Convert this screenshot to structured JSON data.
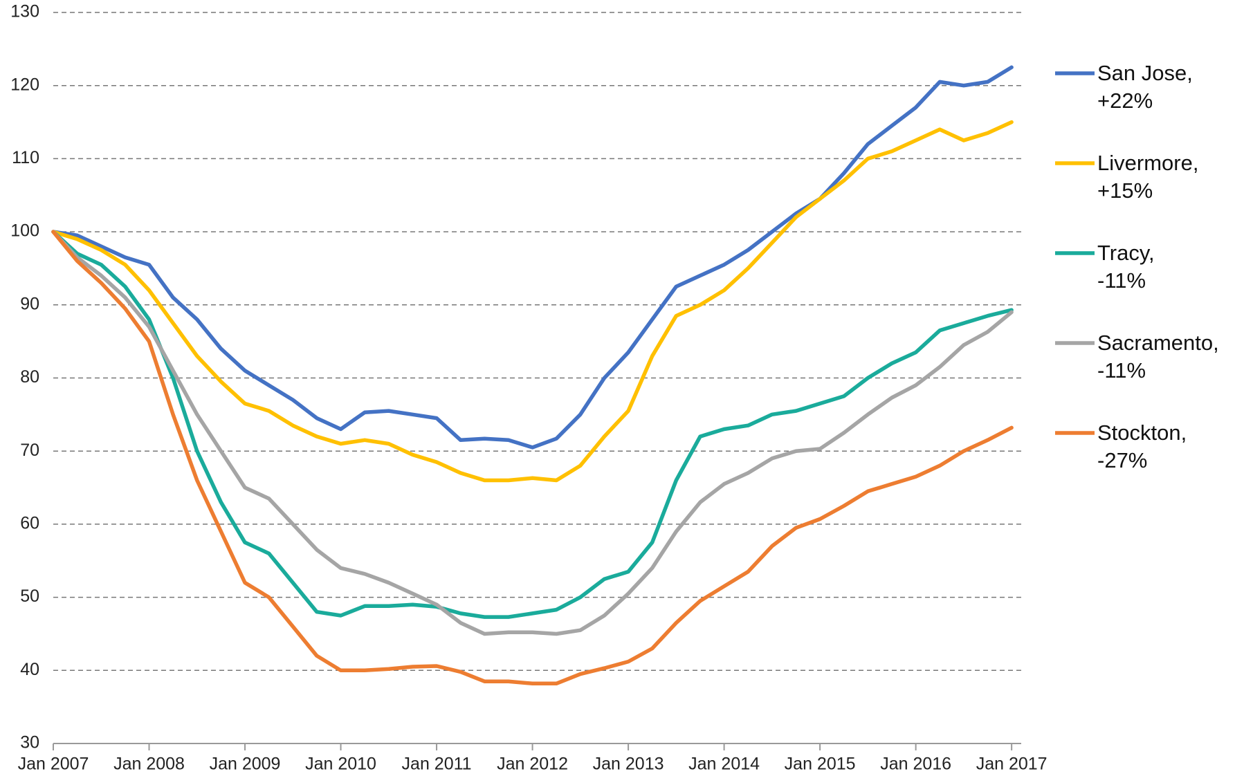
{
  "chart_data": {
    "type": "line",
    "x": [
      2007,
      2007.25,
      2007.5,
      2007.75,
      2008,
      2008.25,
      2008.5,
      2008.75,
      2009,
      2009.25,
      2009.5,
      2009.75,
      2010,
      2010.25,
      2010.5,
      2010.75,
      2011,
      2011.25,
      2011.5,
      2011.75,
      2012,
      2012.25,
      2012.5,
      2012.75,
      2013,
      2013.25,
      2013.5,
      2013.75,
      2014,
      2014.25,
      2014.5,
      2014.75,
      2015,
      2015.25,
      2015.5,
      2015.75,
      2016,
      2016.25,
      2016.5,
      2016.75,
      2017
    ],
    "series": [
      {
        "name": "San Jose,\n+22%",
        "color": "#4472c4",
        "values": [
          100,
          99.5,
          98,
          96.5,
          95.5,
          91,
          88,
          84,
          81,
          79,
          77,
          74.5,
          73,
          75.3,
          75.5,
          75,
          74.5,
          71.5,
          71.7,
          71.5,
          70.5,
          71.7,
          75,
          80,
          83.5,
          88,
          92.5,
          94,
          95.5,
          97.5,
          100,
          102.5,
          104.5,
          108,
          112,
          114.5,
          117,
          120.5,
          120,
          120.5,
          122.5
        ]
      },
      {
        "name": "Livermore,\n+15%",
        "color": "#ffc000",
        "values": [
          100,
          99,
          97.5,
          95.5,
          92,
          87.5,
          83,
          79.5,
          76.5,
          75.5,
          73.5,
          72,
          71,
          71.5,
          71,
          69.5,
          68.5,
          67,
          66,
          66,
          66.3,
          66,
          68,
          72,
          75.5,
          83,
          88.5,
          90,
          92,
          95,
          98.5,
          102,
          104.5,
          107,
          110,
          111,
          112.5,
          114,
          112.5,
          113.5,
          115
        ]
      },
      {
        "name": "Tracy,\n-11%",
        "color": "#1aab9b",
        "values": [
          100,
          97,
          95.5,
          92.5,
          88,
          80,
          70,
          63,
          57.5,
          56,
          52,
          48,
          47.5,
          48.8,
          48.8,
          49,
          48.7,
          47.8,
          47.3,
          47.3,
          47.8,
          48.3,
          50,
          52.5,
          53.5,
          57.5,
          66,
          72,
          73,
          73.5,
          75,
          75.5,
          76.5,
          77.5,
          80,
          82,
          83.5,
          86.5,
          87.5,
          88.5,
          89.3
        ]
      },
      {
        "name": "Sacramento,\n-11%",
        "color": "#a5a5a5",
        "values": [
          100,
          96.5,
          94,
          91,
          87,
          81,
          75,
          70,
          65,
          63.5,
          60,
          56.5,
          54,
          53.2,
          52,
          50.5,
          49,
          46.5,
          45,
          45.2,
          45.2,
          45,
          45.5,
          47.5,
          50.5,
          54,
          59,
          63,
          65.5,
          67,
          69,
          70,
          70.3,
          72.5,
          75,
          77.3,
          79,
          81.5,
          84.5,
          86.3,
          89
        ]
      },
      {
        "name": "Stockton,\n-27%",
        "color": "#ed7d31",
        "values": [
          100,
          96,
          93,
          89.5,
          85,
          75,
          66,
          59,
          52,
          50,
          46,
          42,
          40,
          40,
          40.2,
          40.5,
          40.6,
          39.8,
          38.5,
          38.5,
          38.2,
          38.2,
          39.5,
          40.3,
          41.2,
          43,
          46.5,
          49.5,
          51.5,
          53.5,
          57,
          59.5,
          60.7,
          62.5,
          64.5,
          65.5,
          66.5,
          68,
          70,
          71.5,
          73.2
        ]
      }
    ],
    "xlim": [
      2007,
      2017.1
    ],
    "xticks": [
      {
        "value": 2007,
        "label": "Jan 2007"
      },
      {
        "value": 2008,
        "label": "Jan 2008"
      },
      {
        "value": 2009,
        "label": "Jan 2009"
      },
      {
        "value": 2010,
        "label": "Jan 2010"
      },
      {
        "value": 2011,
        "label": "Jan 2011"
      },
      {
        "value": 2012,
        "label": "Jan 2012"
      },
      {
        "value": 2013,
        "label": "Jan 2013"
      },
      {
        "value": 2014,
        "label": "Jan 2014"
      },
      {
        "value": 2015,
        "label": "Jan 2015"
      },
      {
        "value": 2016,
        "label": "Jan 2016"
      },
      {
        "value": 2017,
        "label": "Jan 2017"
      }
    ],
    "ylim": [
      30,
      130
    ],
    "yticks": [
      30,
      40,
      50,
      60,
      70,
      80,
      90,
      100,
      110,
      120,
      130
    ],
    "grid": true,
    "legend": "right"
  }
}
